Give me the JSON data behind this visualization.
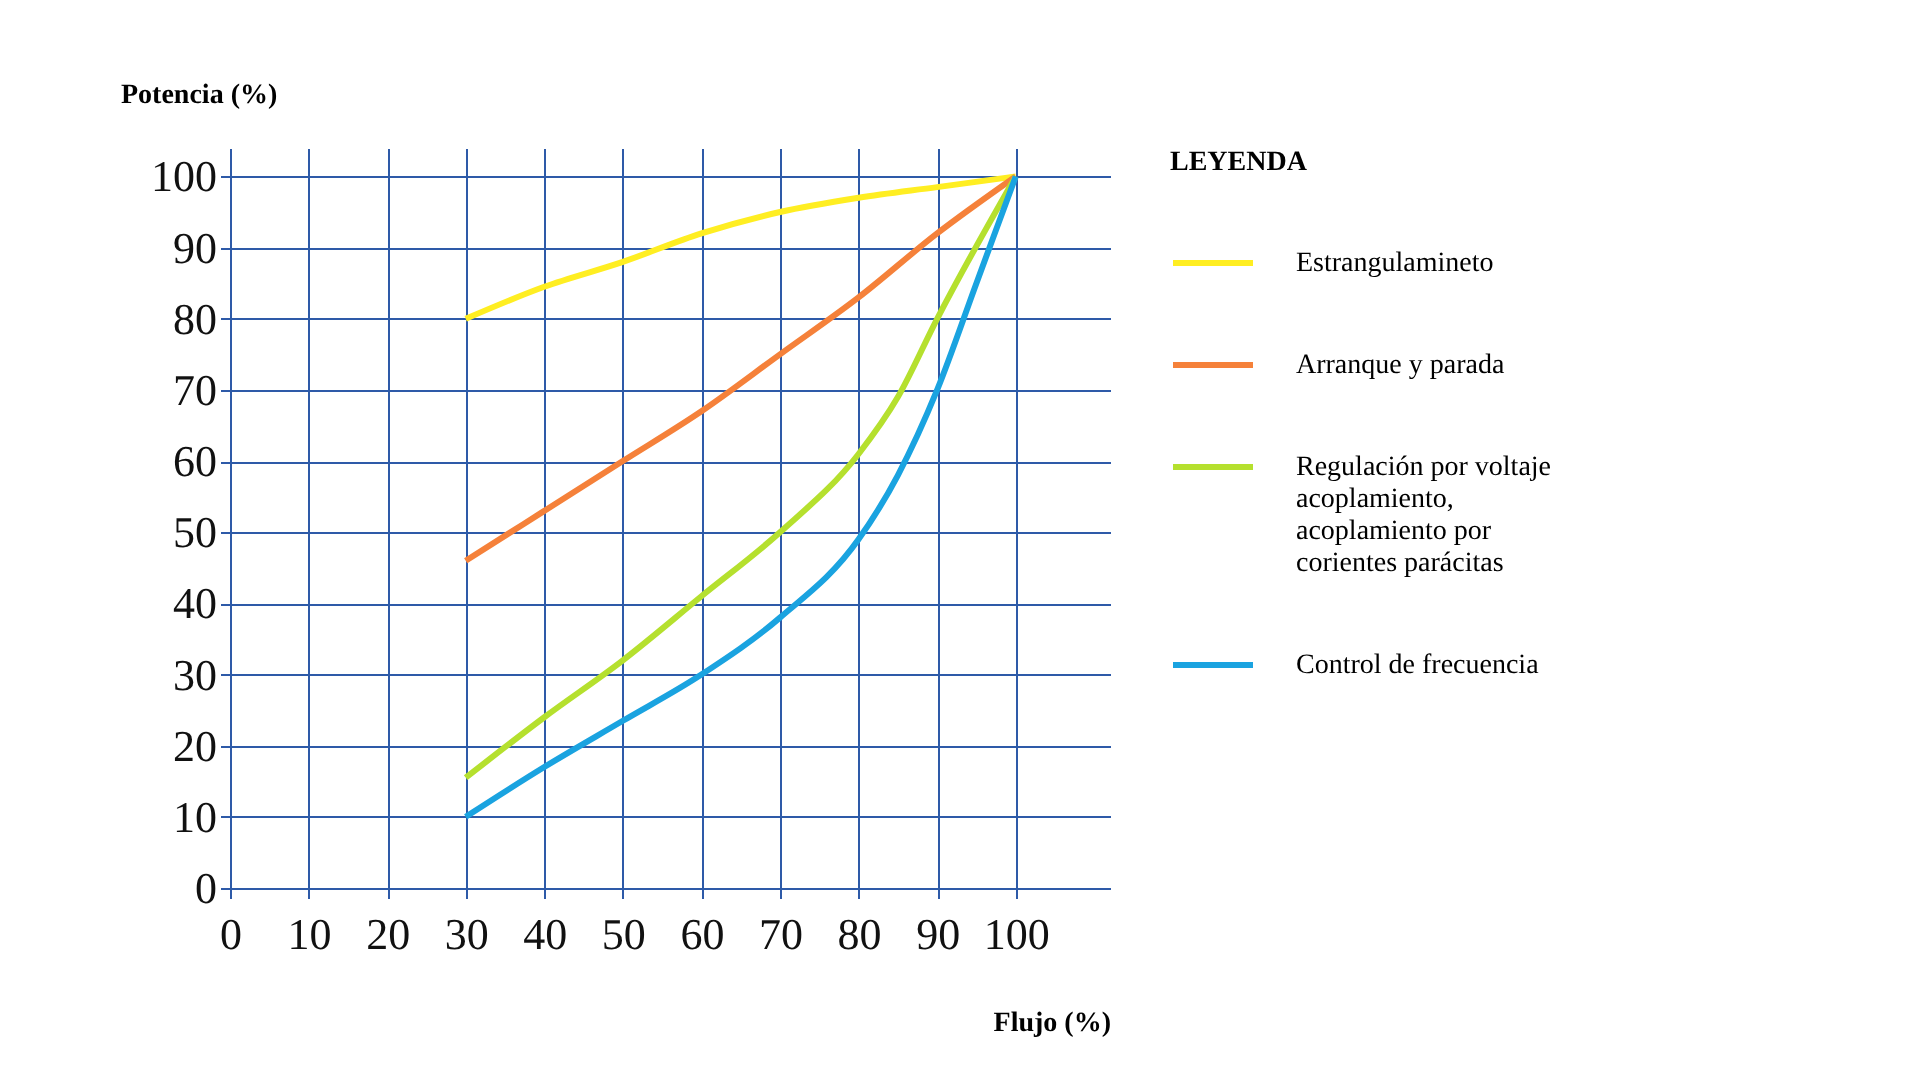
{
  "chart_data": {
    "type": "line",
    "xlabel": "Flujo (%)",
    "ylabel": "Potencia (%)",
    "legend_title": "LEYENDA",
    "legend": "right",
    "grid": true,
    "marker": "none",
    "line_style": "solid",
    "xlim": [
      0,
      112
    ],
    "xticks": [
      0,
      10,
      20,
      30,
      40,
      50,
      60,
      70,
      80,
      90,
      100
    ],
    "ylim": [
      0,
      104
    ],
    "yticks": [
      0,
      10,
      20,
      30,
      40,
      50,
      60,
      70,
      80,
      90,
      100
    ],
    "series": [
      {
        "name": "Estrangulamineto",
        "color": "#ffee22",
        "x": [
          30,
          40,
          50,
          60,
          70,
          80,
          90,
          100
        ],
        "values": [
          80,
          84.5,
          88,
          92,
          95,
          97,
          98.5,
          100
        ]
      },
      {
        "name": "Arranque y parada",
        "color": "#f5813a",
        "x": [
          30,
          40,
          50,
          60,
          70,
          80,
          90,
          100
        ],
        "values": [
          46,
          53,
          60,
          67,
          75,
          83,
          92,
          100
        ]
      },
      {
        "name": "Regulación por voltaje acoplamiento, acoplamiento por corientes parácitas",
        "color": "#b5e02e",
        "x": [
          30,
          40,
          50,
          60,
          70,
          80,
          85,
          90,
          100
        ],
        "values": [
          15.5,
          24,
          32,
          41,
          50,
          61,
          69,
          80,
          100
        ]
      },
      {
        "name": "Control de frecuencia",
        "color": "#1aa3e0",
        "x": [
          30,
          40,
          50,
          60,
          70,
          80,
          85,
          90,
          95,
          100
        ],
        "values": [
          10,
          17,
          23.5,
          30,
          38,
          49,
          58,
          70,
          85,
          100
        ]
      }
    ]
  }
}
